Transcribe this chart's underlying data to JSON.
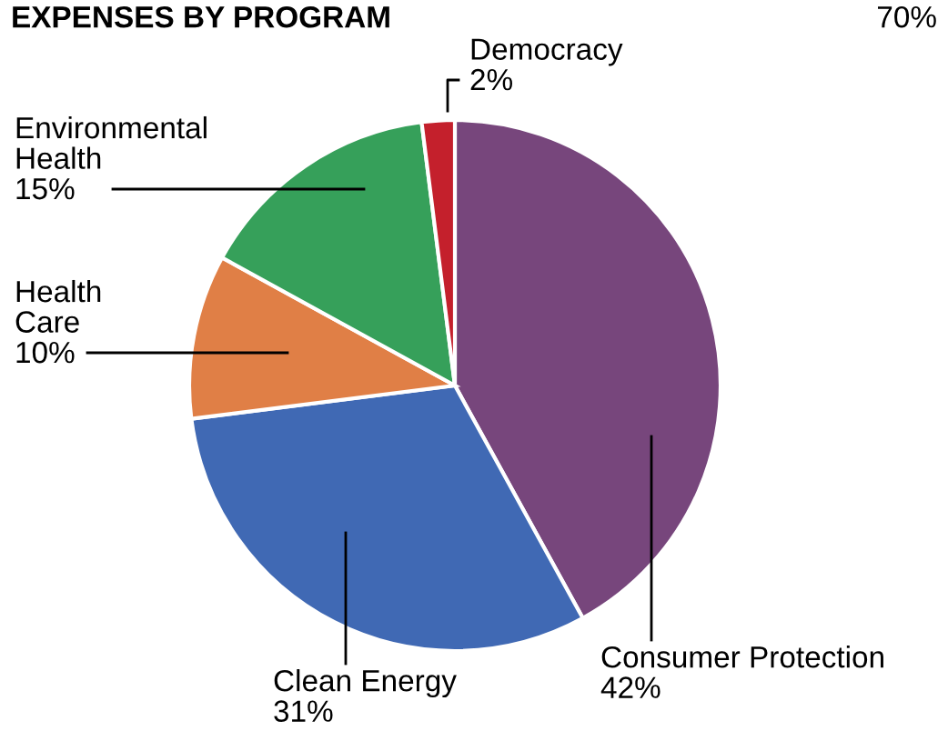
{
  "chart_data": {
    "type": "pie",
    "title": "EXPENSES BY PROGRAM",
    "categories": [
      "Consumer Protection",
      "Clean Energy",
      "Health Care",
      "Environmental Health",
      "Democracy"
    ],
    "values": [
      42,
      31,
      10,
      15,
      2
    ],
    "value_labels": [
      "42%",
      "31%",
      "10%",
      "15%",
      "2%"
    ],
    "colors": [
      "#77467c",
      "#4069b4",
      "#e07f46",
      "#36a05a",
      "#c4202c"
    ],
    "annotations": [
      "70%"
    ]
  }
}
